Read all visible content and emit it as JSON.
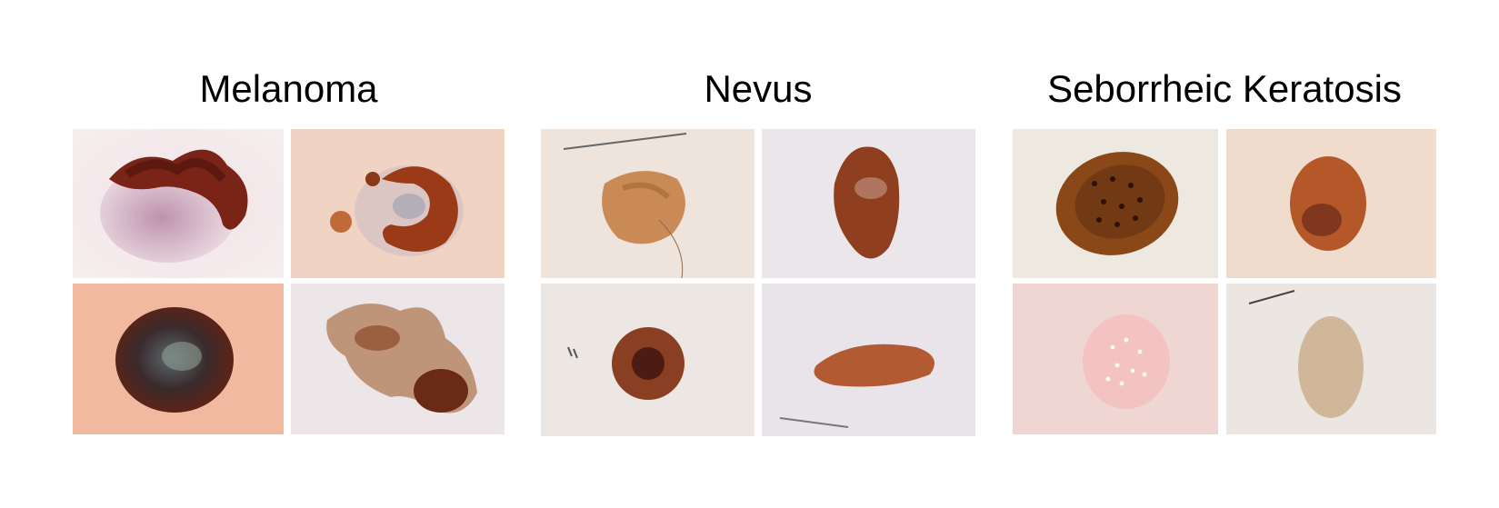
{
  "groups": [
    {
      "title": "Melanoma"
    },
    {
      "title": "Nevus"
    },
    {
      "title": "Seborrheic Keratosis"
    }
  ],
  "colors": {
    "skin_light": "#f2ede8",
    "skin_pink": "#f0cbb6",
    "lesion_dark": "#5a1d14",
    "lesion_brown": "#8f4d27",
    "lesion_tan": "#b9794a"
  }
}
